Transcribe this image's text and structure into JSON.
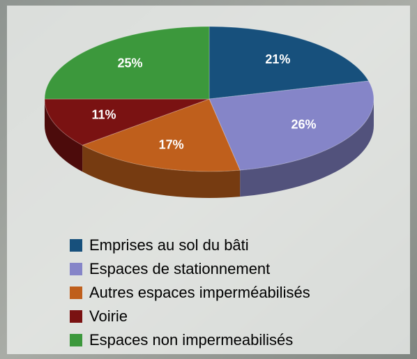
{
  "chart_data": {
    "type": "pie",
    "categories": [
      "Emprises au sol du bâti",
      "Espaces de stationnement",
      "Autres espaces imperméabilisés",
      "Voirie",
      "Espaces non impermeabilisés"
    ],
    "values": [
      21,
      26,
      17,
      11,
      25
    ],
    "value_labels": [
      "21%",
      "26%",
      "17%",
      "11%",
      "25%"
    ],
    "colors": [
      "#17507c",
      "#8585c8",
      "#bf5f1c",
      "#7a1212",
      "#3c983c"
    ]
  }
}
